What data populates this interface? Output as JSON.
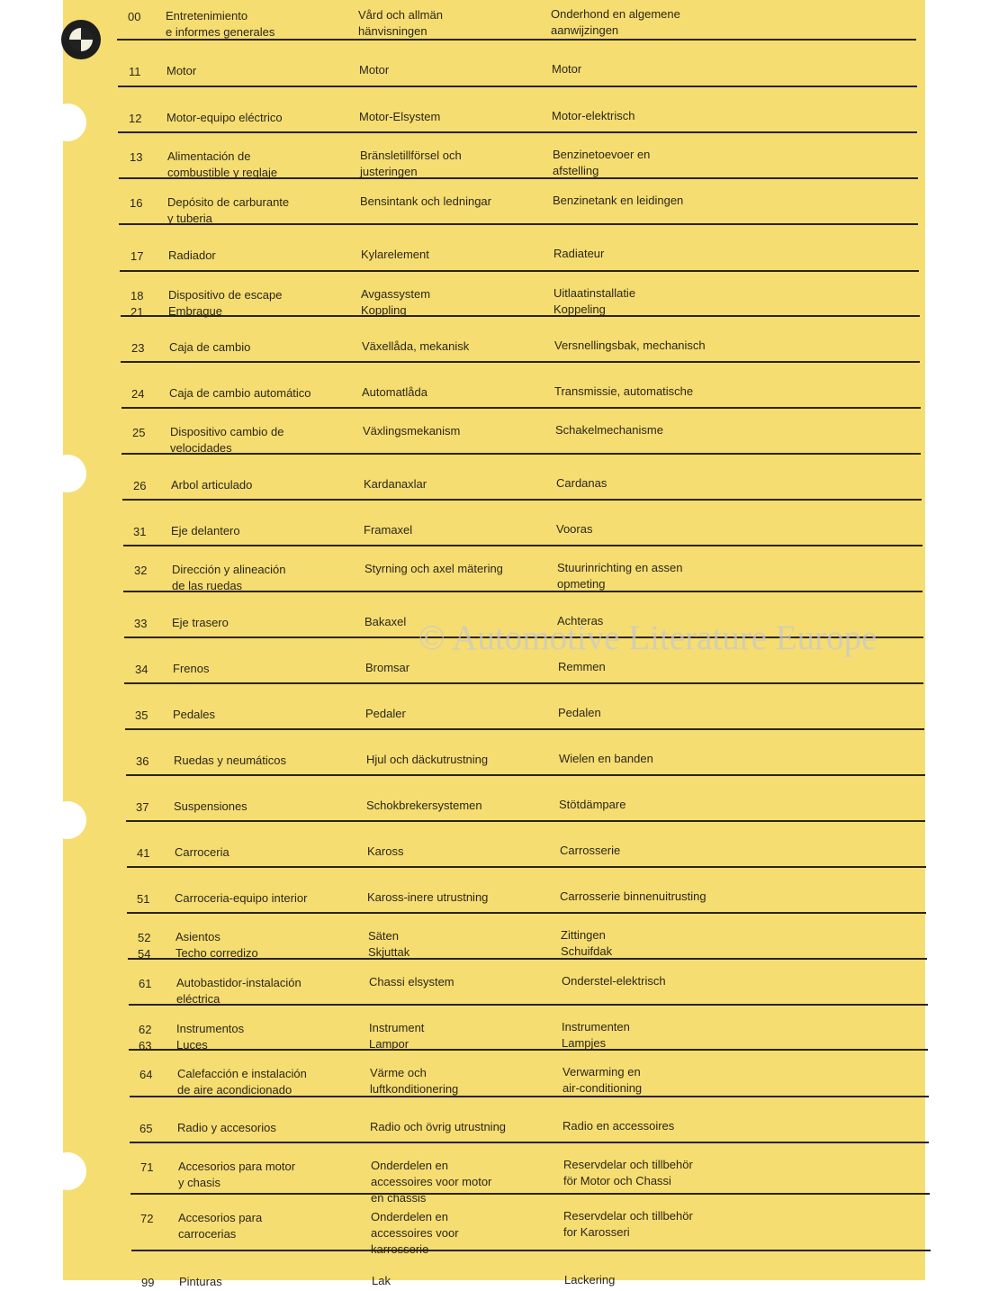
{
  "colors": {
    "paper": "#f6dd72",
    "ink": "#2b2718",
    "rule": "#2a2414"
  },
  "logo": {
    "name": "BMW roundel",
    "text": "BMW"
  },
  "watermark": "© Automotive Literature Europe",
  "rows": [
    {
      "code": "00",
      "es": "Entretenimiento\ne informes generales",
      "sv": "Vård och allmän\nhänvisningen",
      "nl": "Onderhond en algemene\naanwijzingen"
    },
    {
      "code": "11",
      "es": "Motor",
      "sv": "Motor",
      "nl": "Motor"
    },
    {
      "code": "12",
      "es": "Motor-equipo eléctrico",
      "sv": "Motor-Elsystem",
      "nl": "Motor-elektrisch"
    },
    {
      "code": "13",
      "es": "Alimentación de\ncombustible y reglaje",
      "sv": "Bränsletillförsel och\njusteringen",
      "nl": "Benzinetoevoer en\nafstelling"
    },
    {
      "code": "16",
      "es": "Depósito de carburante\ny tuberia",
      "sv": "Bensintank och ledningar",
      "nl": "Benzinetank en leidingen"
    },
    {
      "code": "17",
      "es": "Radiador",
      "sv": "Kylarelement",
      "nl": "Radiateur"
    },
    {
      "code": "18\n21",
      "es": "Dispositivo de escape\nEmbrague",
      "sv": "Avgassystem\nKoppling",
      "nl": "Uitlaatinstallatie\nKoppeling"
    },
    {
      "code": "23",
      "es": "Caja de cambio",
      "sv": "Växellåda, mekanisk",
      "nl": "Versnellingsbak, mechanisch"
    },
    {
      "code": "24",
      "es": "Caja de cambio automático",
      "sv": "Automatlåda",
      "nl": "Transmissie, automatische"
    },
    {
      "code": "25",
      "es": "Dispositivo cambio de\nvelocidades",
      "sv": "Växlingsmekanism",
      "nl": "Schakelmechanisme"
    },
    {
      "code": "26",
      "es": "Arbol articulado",
      "sv": "Kardanaxlar",
      "nl": "Cardanas"
    },
    {
      "code": "31",
      "es": "Eje delantero",
      "sv": "Framaxel",
      "nl": "Vooras"
    },
    {
      "code": "32",
      "es": "Dirección y alineación\nde las ruedas",
      "sv": "Styrning och axel mätering",
      "nl": "Stuurinrichting en assen\nopmeting"
    },
    {
      "code": "33",
      "es": "Eje trasero",
      "sv": "Bakaxel",
      "nl": "Achteras"
    },
    {
      "code": "34",
      "es": "Frenos",
      "sv": "Bromsar",
      "nl": "Remmen"
    },
    {
      "code": "35",
      "es": "Pedales",
      "sv": "Pedaler",
      "nl": "Pedalen"
    },
    {
      "code": "36",
      "es": "Ruedas y neumáticos",
      "sv": "Hjul och däckutrustning",
      "nl": "Wielen en banden"
    },
    {
      "code": "37",
      "es": "Suspensiones",
      "sv": "Schokbrekersystemen",
      "nl": "Stötdämpare"
    },
    {
      "code": "41",
      "es": "Carroceria",
      "sv": "Kaross",
      "nl": "Carrosserie"
    },
    {
      "code": "51",
      "es": "Carroceria-equipo interior",
      "sv": "Kaross-inere utrustning",
      "nl": "Carrosserie binnenuitrusting"
    },
    {
      "code": "52\n54",
      "es": "Asientos\nTecho corredizo",
      "sv": "Säten\nSkjuttak",
      "nl": "Zittingen\nSchuifdak"
    },
    {
      "code": "61",
      "es": "Autobastidor-instalación\neléctrica",
      "sv": "Chassi elsystem",
      "nl": "Onderstel-elektrisch"
    },
    {
      "code": "62\n63",
      "es": "Instrumentos\nLuces",
      "sv": "Instrument\nLampor",
      "nl": "Instrumenten\nLampjes"
    },
    {
      "code": "64",
      "es": "Calefacción e instalación\nde aire acondicionado",
      "sv": "Värme och\nluftkonditionering",
      "nl": "Verwarming en\nair-conditioning"
    },
    {
      "code": "65",
      "es": "Radio y accesorios",
      "sv": "Radio och övrig utrustning",
      "nl": "Radio en accessoires"
    },
    {
      "code": "71",
      "es": "Accesorios para motor\ny chasis",
      "sv": "Onderdelen en\naccessoires voor motor\nen chassis",
      "nl": "Reservdelar och tillbehör\nför Motor och Chassi"
    },
    {
      "code": "72",
      "es": "Accesorios para\ncarrocerias",
      "sv": "Onderdelen en\naccessoires voor\nkarrosserie",
      "nl": "Reservdelar och tillbehör\nfor Karosseri"
    },
    {
      "code": "99",
      "es": "Pinturas",
      "sv": "Lak",
      "nl": "Lackering"
    }
  ]
}
